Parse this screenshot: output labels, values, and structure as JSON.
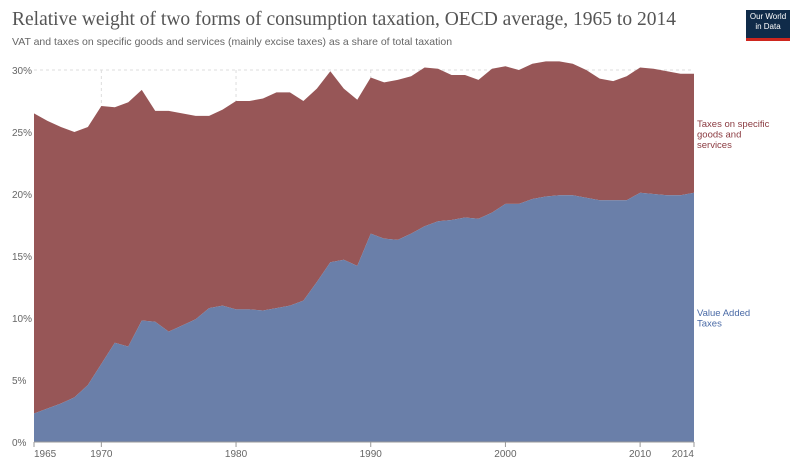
{
  "header": {
    "title": "Relative weight of two forms of consumption taxation, OECD average, 1965 to 2014",
    "subtitle": "VAT and taxes on specific goods and services (mainly excise taxes) as a share of total taxation",
    "logo_line1": "Our World",
    "logo_line2": "in Data"
  },
  "colors": {
    "vat": "#6a7fa9",
    "excise": "#975657",
    "excise_label": "#8b3b41",
    "vat_label": "#4a6aa6",
    "grid": "#dddddd",
    "axis": "#999999"
  },
  "chart_data": {
    "type": "area",
    "stacked": true,
    "x": [
      1965,
      1966,
      1967,
      1968,
      1969,
      1970,
      1971,
      1972,
      1973,
      1974,
      1975,
      1976,
      1977,
      1978,
      1979,
      1980,
      1981,
      1982,
      1983,
      1984,
      1985,
      1986,
      1987,
      1988,
      1989,
      1990,
      1991,
      1992,
      1993,
      1994,
      1995,
      1996,
      1997,
      1998,
      1999,
      2000,
      2001,
      2002,
      2003,
      2004,
      2005,
      2006,
      2007,
      2008,
      2009,
      2010,
      2011,
      2012,
      2013,
      2014
    ],
    "series": [
      {
        "name": "Value Added Taxes",
        "values": [
          2.3,
          2.7,
          3.1,
          3.6,
          4.6,
          6.3,
          8.0,
          7.7,
          9.8,
          9.7,
          8.9,
          9.4,
          9.9,
          10.8,
          11.0,
          10.7,
          10.7,
          10.6,
          10.8,
          11.0,
          11.4,
          12.9,
          14.5,
          14.7,
          14.2,
          16.8,
          16.4,
          16.3,
          16.8,
          17.4,
          17.8,
          17.9,
          18.1,
          18.0,
          18.5,
          19.2,
          19.2,
          19.6,
          19.8,
          19.9,
          19.9,
          19.7,
          19.5,
          19.5,
          19.5,
          20.1,
          20.0,
          19.9,
          19.9,
          20.1
        ]
      },
      {
        "name": "Taxes on specific goods and services",
        "values": [
          24.2,
          23.2,
          22.3,
          21.4,
          20.8,
          20.8,
          19.0,
          19.7,
          18.6,
          17.0,
          17.8,
          17.1,
          16.4,
          15.5,
          15.8,
          16.8,
          16.8,
          17.1,
          17.4,
          17.2,
          16.1,
          15.6,
          15.4,
          13.8,
          13.4,
          12.6,
          12.6,
          12.9,
          12.7,
          12.8,
          12.3,
          11.7,
          11.5,
          11.2,
          11.6,
          11.1,
          10.8,
          10.9,
          10.9,
          10.8,
          10.6,
          10.3,
          9.8,
          9.6,
          10.0,
          10.1,
          10.1,
          10.0,
          9.8,
          9.6
        ]
      }
    ],
    "xlabels": [
      "1965",
      "1970",
      "1980",
      "1990",
      "2000",
      "2010",
      "2014"
    ],
    "xticks": [
      1965,
      1970,
      1980,
      1990,
      2000,
      2010,
      2014
    ],
    "yticks": [
      0,
      5,
      10,
      15,
      20,
      25,
      30
    ],
    "ytick_labels": [
      "0%",
      "5%",
      "10%",
      "15%",
      "20%",
      "25%",
      "30%"
    ],
    "ylim": [
      0,
      30
    ],
    "xlim": [
      1965,
      2014
    ],
    "legend_labels": {
      "excise": [
        "Taxes on specific",
        "goods and",
        "services"
      ],
      "vat": [
        "Value Added",
        "Taxes"
      ]
    },
    "grid": true,
    "legend_placement": "right (inline labels)"
  }
}
